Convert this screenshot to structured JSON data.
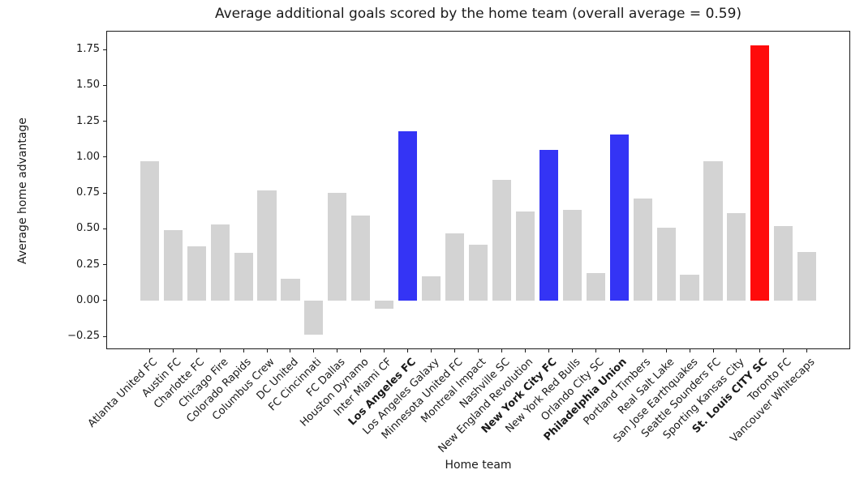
{
  "chart_data": {
    "type": "bar",
    "title": "Average additional goals scored by the home team (overall average = 0.59)",
    "xlabel": "Home team",
    "ylabel": "Average home advantage",
    "overall_average": 0.59,
    "ylim": [
      -0.34,
      1.88
    ],
    "xlim": [
      -1.84,
      29.84
    ],
    "yticks": [
      -0.25,
      0.0,
      0.25,
      0.5,
      0.75,
      1.0,
      1.25,
      1.5,
      1.75
    ],
    "grid": false,
    "legend": "none",
    "palette": {
      "gray": "#d3d3d3",
      "blue": "#3434f5",
      "red": "#ff0b0b"
    },
    "teams": [
      {
        "label": "Atlanta United FC",
        "value": 0.97,
        "color": "gray",
        "bold": false
      },
      {
        "label": "Austin FC",
        "value": 0.49,
        "color": "gray",
        "bold": false
      },
      {
        "label": "Charlotte FC",
        "value": 0.38,
        "color": "gray",
        "bold": false
      },
      {
        "label": "Chicago Fire",
        "value": 0.53,
        "color": "gray",
        "bold": false
      },
      {
        "label": "Colorado Rapids",
        "value": 0.33,
        "color": "gray",
        "bold": false
      },
      {
        "label": "Columbus Crew",
        "value": 0.77,
        "color": "gray",
        "bold": false
      },
      {
        "label": "DC United",
        "value": 0.15,
        "color": "gray",
        "bold": false
      },
      {
        "label": "FC Cincinnati",
        "value": -0.24,
        "color": "gray",
        "bold": false
      },
      {
        "label": "FC Dallas",
        "value": 0.75,
        "color": "gray",
        "bold": false
      },
      {
        "label": "Houston Dynamo",
        "value": 0.59,
        "color": "gray",
        "bold": false
      },
      {
        "label": "Inter Miami CF",
        "value": -0.06,
        "color": "gray",
        "bold": false
      },
      {
        "label": "Los Angeles FC",
        "value": 1.18,
        "color": "blue",
        "bold": true
      },
      {
        "label": "Los Angeles Galaxy",
        "value": 0.17,
        "color": "gray",
        "bold": false
      },
      {
        "label": "Minnesota United FC",
        "value": 0.47,
        "color": "gray",
        "bold": false
      },
      {
        "label": "Montreal Impact",
        "value": 0.39,
        "color": "gray",
        "bold": false
      },
      {
        "label": "Nashville SC",
        "value": 0.84,
        "color": "gray",
        "bold": false
      },
      {
        "label": "New England Revolution",
        "value": 0.62,
        "color": "gray",
        "bold": false
      },
      {
        "label": "New York City FC",
        "value": 1.05,
        "color": "blue",
        "bold": true
      },
      {
        "label": "New York Red Bulls",
        "value": 0.63,
        "color": "gray",
        "bold": false
      },
      {
        "label": "Orlando City SC",
        "value": 0.19,
        "color": "gray",
        "bold": false
      },
      {
        "label": "Philadelphia Union",
        "value": 1.16,
        "color": "blue",
        "bold": true
      },
      {
        "label": "Portland Timbers",
        "value": 0.71,
        "color": "gray",
        "bold": false
      },
      {
        "label": "Real Salt Lake",
        "value": 0.51,
        "color": "gray",
        "bold": false
      },
      {
        "label": "San Jose Earthquakes",
        "value": 0.18,
        "color": "gray",
        "bold": false
      },
      {
        "label": "Seattle Sounders FC",
        "value": 0.97,
        "color": "gray",
        "bold": false
      },
      {
        "label": "Sporting Kansas City",
        "value": 0.61,
        "color": "gray",
        "bold": false
      },
      {
        "label": "St. Louis CITY SC",
        "value": 1.78,
        "color": "red",
        "bold": true
      },
      {
        "label": "Toronto FC",
        "value": 0.52,
        "color": "gray",
        "bold": false
      },
      {
        "label": "Vancouver Whitecaps",
        "value": 0.34,
        "color": "gray",
        "bold": false
      }
    ]
  }
}
